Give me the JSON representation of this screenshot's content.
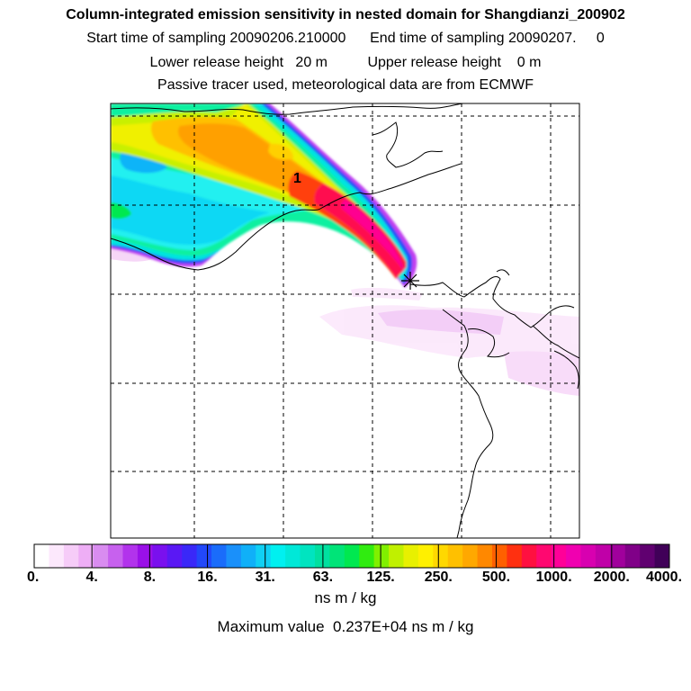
{
  "header": {
    "title": "Column-integrated emission sensitivity in nested domain for Shangdianzi_200902",
    "line2": "Start time of sampling 20090206.210000      End time of sampling 20090207.     0",
    "line3": "Lower release height   20 m          Upper release height    0 m",
    "line4": "Passive tracer used, meteorological data are from ECMWF"
  },
  "map": {
    "release_label": "1",
    "receptor_marker": "asterisk-icon"
  },
  "chart_data": {
    "type": "heatmap",
    "title": "Column-integrated emission sensitivity in nested domain for Shangdianzi_200902",
    "colorbar": {
      "unit": "ns m / kg",
      "tick_labels": [
        "0.",
        "4.",
        "8.",
        "16.",
        "31.",
        "63.",
        "125.",
        "250.",
        "500.",
        "1000.",
        "2000.",
        "4000."
      ],
      "tick_values": [
        0,
        4,
        8,
        16,
        31,
        63,
        125,
        250,
        500,
        1000,
        2000,
        4000
      ],
      "colors": [
        "#ffffff",
        "#fce8fc",
        "#f6ccf8",
        "#eeaef6",
        "#d98cf0",
        "#c761ee",
        "#b233ec",
        "#9a10e8",
        "#7a10ee",
        "#5a18f4",
        "#3a28f8",
        "#2248fa",
        "#1a6cfa",
        "#1a90fa",
        "#10b0f8",
        "#10d0f4",
        "#00f0f0",
        "#00e8d8",
        "#00e4c0",
        "#00e0a0",
        "#00e478",
        "#00e850",
        "#30ec10",
        "#80f000",
        "#c0f000",
        "#e8f000",
        "#fff000",
        "#ffd800",
        "#ffc000",
        "#ffa800",
        "#ff8800",
        "#ff6000",
        "#ff3010",
        "#ff1040",
        "#ff0870",
        "#ff0098",
        "#f000b0",
        "#d800b0",
        "#c000a8",
        "#a0009c",
        "#800088",
        "#600070",
        "#400058"
      ]
    },
    "maximum": "Maximum value  0.237E+04 ns m / kg",
    "legend_position": "bottom"
  }
}
